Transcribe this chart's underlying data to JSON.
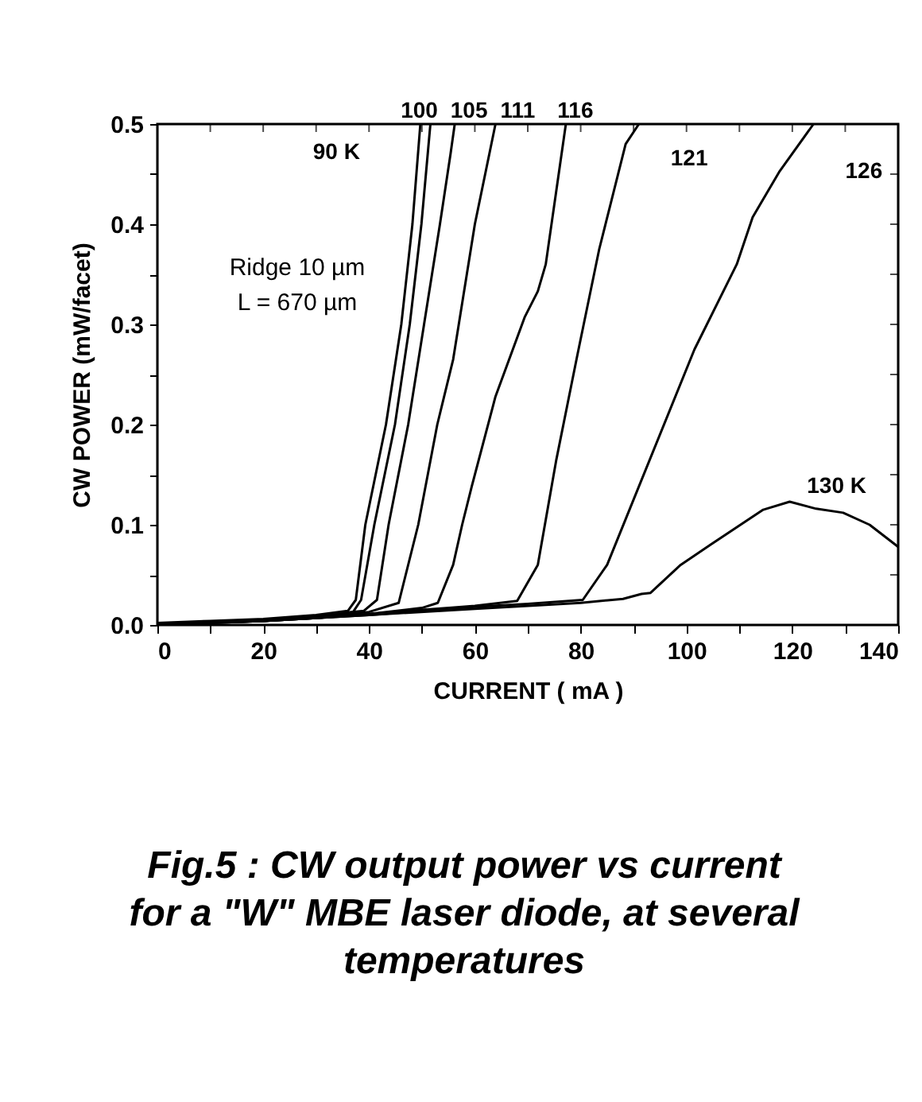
{
  "chart_data": {
    "type": "line",
    "title": "Fig.5 : CW output power vs current\nfor a \"W\" MBE laser diode, at several\ntemperatures",
    "xlabel": "CURRENT ( mA )",
    "ylabel": "CW POWER (mW/facet)",
    "annotations": [
      "Ridge 10 µm",
      "L = 670 µm"
    ],
    "xlim": [
      0,
      140
    ],
    "ylim": [
      0,
      0.5
    ],
    "xticks": [
      0,
      {
        "value": 10,
        "label": null
      },
      20,
      {
        "value": 30,
        "label": null
      },
      40,
      {
        "value": 50,
        "label": null
      },
      60,
      {
        "value": 70,
        "label": null
      },
      80,
      {
        "value": 90,
        "label": null
      },
      100,
      {
        "value": 110,
        "label": null
      },
      120,
      {
        "value": 130,
        "label": null
      },
      140
    ],
    "yticks": [
      {
        "value": 0,
        "label": "0.0"
      },
      {
        "value": 0.05,
        "label": null
      },
      0.1,
      {
        "value": 0.15,
        "label": null
      },
      0.2,
      {
        "value": 0.25,
        "label": null
      },
      0.3,
      {
        "value": 0.35,
        "label": null
      },
      0.4,
      {
        "value": 0.45,
        "label": null
      },
      0.5
    ],
    "grid": false,
    "legend": "top",
    "marker": "none",
    "line_style": "solid",
    "series": [
      {
        "name": "90 K",
        "color": "#000000",
        "x": [
          0,
          10,
          20,
          30,
          36,
          37.5,
          39.3,
          43.2,
          46.1,
          48.2,
          49.7
        ],
        "values": [
          0.002,
          0.004,
          0.006,
          0.01,
          0.014,
          0.025,
          0.1,
          0.2,
          0.3,
          0.4,
          0.5
        ]
      },
      {
        "name": "100",
        "color": "#000000",
        "x": [
          0,
          10,
          20,
          30,
          37,
          38.5,
          41,
          44.9,
          47.7,
          49.9,
          51.6
        ],
        "values": [
          0.001,
          0.003,
          0.005,
          0.009,
          0.013,
          0.025,
          0.1,
          0.2,
          0.3,
          0.4,
          0.5
        ]
      },
      {
        "name": "105",
        "color": "#000000",
        "x": [
          0,
          10,
          20,
          30,
          39,
          41.5,
          43.7,
          47.4,
          50.4,
          53.4,
          55.4,
          56.2
        ],
        "values": [
          0.001,
          0.003,
          0.005,
          0.009,
          0.014,
          0.025,
          0.1,
          0.2,
          0.3,
          0.4,
          0.47,
          0.5
        ]
      },
      {
        "name": "111",
        "color": "#000000",
        "x": [
          0,
          10,
          20,
          30,
          40,
          45.6,
          49.3,
          52.9,
          55.9,
          60,
          63.9
        ],
        "values": [
          0.001,
          0.002,
          0.004,
          0.008,
          0.013,
          0.022,
          0.1,
          0.2,
          0.265,
          0.4,
          0.5
        ]
      },
      {
        "name": "116",
        "color": "#000000",
        "x": [
          0,
          10,
          20,
          30,
          40,
          50,
          53,
          55.9,
          57.6,
          59.4,
          63.9,
          69.4,
          71.9,
          73.4,
          77.2
        ],
        "values": [
          0.001,
          0.002,
          0.004,
          0.007,
          0.011,
          0.017,
          0.022,
          0.06,
          0.1,
          0.138,
          0.228,
          0.307,
          0.333,
          0.36,
          0.5
        ]
      },
      {
        "name": "121",
        "color": "#000000",
        "x": [
          0,
          10,
          20,
          30,
          40,
          50,
          60,
          68,
          71.9,
          75.4,
          79.4,
          83.5,
          88.5,
          91
        ],
        "values": [
          0.001,
          0.002,
          0.004,
          0.007,
          0.011,
          0.015,
          0.019,
          0.024,
          0.06,
          0.165,
          0.27,
          0.375,
          0.48,
          0.5
        ]
      },
      {
        "name": "126",
        "color": "#000000",
        "x": [
          0,
          20,
          40,
          60,
          70,
          80.4,
          85,
          101.5,
          109.5,
          112.5,
          117.5,
          124
        ],
        "values": [
          0.001,
          0.004,
          0.01,
          0.018,
          0.021,
          0.025,
          0.06,
          0.275,
          0.36,
          0.407,
          0.452,
          0.5
        ]
      },
      {
        "name": "130 K",
        "color": "#000000",
        "x": [
          0,
          20,
          40,
          60,
          80,
          88,
          91.5,
          93.2,
          98.9,
          104.5,
          114.5,
          119.5,
          124.5,
          129.6,
          134.6,
          140
        ],
        "values": [
          0.001,
          0.004,
          0.01,
          0.016,
          0.022,
          0.026,
          0.031,
          0.032,
          0.06,
          0.08,
          0.115,
          0.123,
          0.116,
          0.112,
          0.1,
          0.078
        ]
      }
    ]
  }
}
